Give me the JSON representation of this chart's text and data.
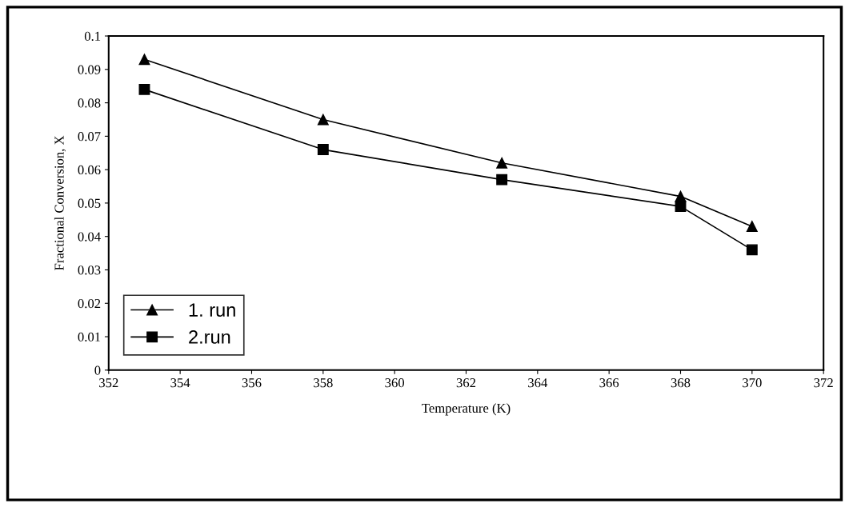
{
  "chart_data": {
    "type": "line",
    "xlabel": "Temperature (K)",
    "ylabel": "Fractional Conversion, X",
    "x": [
      353,
      358,
      363,
      368,
      370
    ],
    "series": [
      {
        "name": "1. run",
        "color": "#000000",
        "marker": "triangle",
        "values": [
          0.093,
          0.075,
          0.062,
          0.052,
          0.043
        ]
      },
      {
        "name": "2.run",
        "color": "#000000",
        "marker": "square",
        "values": [
          0.084,
          0.066,
          0.057,
          0.049,
          0.036
        ]
      }
    ],
    "xlim": [
      352,
      372
    ],
    "xticks": [
      352,
      354,
      356,
      358,
      360,
      362,
      364,
      366,
      368,
      370,
      372
    ],
    "ylim": [
      0,
      0.1
    ],
    "yticks": [
      0,
      0.01,
      0.02,
      0.03,
      0.04,
      0.05,
      0.06,
      0.07,
      0.08,
      0.09,
      0.1
    ],
    "grid": false,
    "legend": "bottom left",
    "line_style": "solid"
  }
}
